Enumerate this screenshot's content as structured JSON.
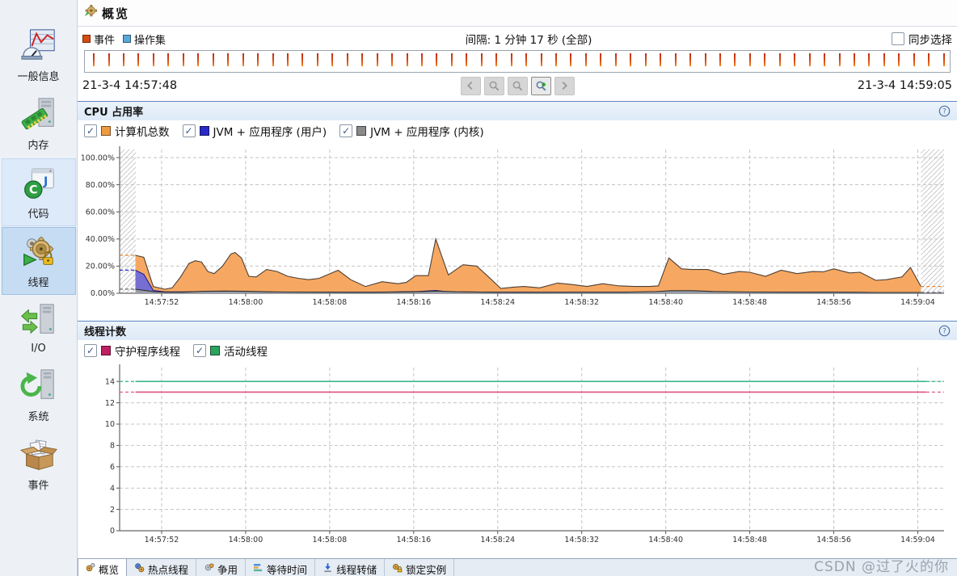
{
  "app": {
    "watermark": "CSDN @过了火的你"
  },
  "header": {
    "title": "概览"
  },
  "sidebar": {
    "items": [
      {
        "id": "general-info",
        "label": "一般信息",
        "state": "normal"
      },
      {
        "id": "memory",
        "label": "内存",
        "state": "normal"
      },
      {
        "id": "code",
        "label": "代码",
        "state": "hover"
      },
      {
        "id": "threads",
        "label": "线程",
        "state": "selected"
      },
      {
        "id": "io",
        "label": "I/O",
        "state": "normal"
      },
      {
        "id": "system",
        "label": "系统",
        "state": "normal"
      },
      {
        "id": "events",
        "label": "事件",
        "state": "normal"
      }
    ]
  },
  "timeline": {
    "legend": [
      {
        "label": "事件",
        "color": "#d94a10"
      },
      {
        "label": "操作集",
        "color": "#58a8d8"
      }
    ],
    "interval_label": "间隔: 1 分钟 17 秒 (全部)",
    "sync_checkbox": {
      "label": "同步选择",
      "checked": false
    },
    "start_time": "21-3-4 14:57:48",
    "end_time": "21-3-4 14:59:05",
    "ticks": {
      "count": 58
    },
    "nav_buttons": [
      {
        "name": "pan-left-button",
        "icon": "arrow-left-icon",
        "enabled": false
      },
      {
        "name": "zoom-out-button",
        "icon": "magnifier-icon",
        "enabled": false
      },
      {
        "name": "zoom-reset-button",
        "icon": "magnifier-icon",
        "enabled": false
      },
      {
        "name": "zoom-in-button",
        "icon": "magnifier-plus-icon",
        "enabled": true
      },
      {
        "name": "pan-right-button",
        "icon": "arrow-right-icon",
        "enabled": false
      }
    ]
  },
  "cpu_panel": {
    "title": "CPU 占用率",
    "legend": [
      {
        "label": "计算机总数",
        "color": "#f09a40",
        "checked": true
      },
      {
        "label": "JVM + 应用程序 (用户)",
        "color": "#2a2ac8",
        "checked": true
      },
      {
        "label": "JVM + 应用程序 (内核)",
        "color": "#8a8a8a",
        "checked": true
      }
    ]
  },
  "thread_panel": {
    "title": "线程计数",
    "legend": [
      {
        "label": "守护程序线程",
        "color": "#c01f63",
        "checked": true
      },
      {
        "label": "活动线程",
        "color": "#2ca25f",
        "checked": true
      }
    ]
  },
  "tabs": [
    {
      "label": "概览",
      "icon": "overview-tab-icon",
      "selected": true
    },
    {
      "label": "热点线程",
      "icon": "hot-threads-tab-icon",
      "selected": false
    },
    {
      "label": "争用",
      "icon": "contention-tab-icon",
      "selected": false
    },
    {
      "label": "等待时间",
      "icon": "wait-times-tab-icon",
      "selected": false
    },
    {
      "label": "线程转储",
      "icon": "thread-dump-tab-icon",
      "selected": false
    },
    {
      "label": "锁定实例",
      "icon": "locked-instances-tab-icon",
      "selected": false
    }
  ],
  "chart_data": [
    {
      "type": "area",
      "title": "CPU 占用率",
      "x_unit": "seconds after 21-3-4 14:57:48",
      "x_range": [
        0,
        78.5
      ],
      "ylim": [
        0,
        106
      ],
      "grid": true,
      "x_ticks": [
        {
          "t": 4,
          "label": "14:57:52"
        },
        {
          "t": 12,
          "label": "14:58:00"
        },
        {
          "t": 20,
          "label": "14:58:08"
        },
        {
          "t": 28,
          "label": "14:58:16"
        },
        {
          "t": 36,
          "label": "14:58:24"
        },
        {
          "t": 44,
          "label": "14:58:32"
        },
        {
          "t": 52,
          "label": "14:58:40"
        },
        {
          "t": 60,
          "label": "14:58:48"
        },
        {
          "t": 68,
          "label": "14:58:56"
        },
        {
          "t": 76,
          "label": "14:59:04"
        }
      ],
      "y_ticks": [
        {
          "v": 0,
          "label": "0.00%"
        },
        {
          "v": 20,
          "label": "20.00%"
        },
        {
          "v": 40,
          "label": "40.00%"
        },
        {
          "v": 60,
          "label": "60.00%"
        },
        {
          "v": 80,
          "label": "80.00%"
        },
        {
          "v": 100,
          "label": "100.00%"
        }
      ],
      "extrapolation": {
        "hatched": true,
        "left_end": 1.5,
        "right_start": 76.3
      },
      "series": [
        {
          "name": "计算机总数",
          "fill": "#f5a35a",
          "stroke": "#4d3f35",
          "dash_color": "#e8882a",
          "points": [
            [
              1.5,
              28
            ],
            [
              2.3,
              26.5
            ],
            [
              3.2,
              5
            ],
            [
              4.3,
              3
            ],
            [
              5,
              4
            ],
            [
              5.8,
              12
            ],
            [
              6.6,
              22
            ],
            [
              7.2,
              24
            ],
            [
              7.8,
              23
            ],
            [
              8.4,
              16
            ],
            [
              9,
              14.5
            ],
            [
              9.8,
              20
            ],
            [
              10.6,
              29
            ],
            [
              11,
              30
            ],
            [
              11.6,
              26
            ],
            [
              12.3,
              12.5
            ],
            [
              13,
              12
            ],
            [
              14,
              17.5
            ],
            [
              15,
              16
            ],
            [
              16,
              12.5
            ],
            [
              17,
              11
            ],
            [
              18,
              10
            ],
            [
              19,
              11
            ],
            [
              20.8,
              17
            ],
            [
              22,
              10
            ],
            [
              23.4,
              5
            ],
            [
              25,
              8.5
            ],
            [
              26.5,
              7
            ],
            [
              27.3,
              8
            ],
            [
              28.2,
              13
            ],
            [
              29.4,
              13
            ],
            [
              30.1,
              40
            ],
            [
              31.3,
              13.5
            ],
            [
              32.7,
              21
            ],
            [
              34,
              20
            ],
            [
              35,
              13
            ],
            [
              36.3,
              3.5
            ],
            [
              37.5,
              4.5
            ],
            [
              38.5,
              5
            ],
            [
              40,
              4
            ],
            [
              41.7,
              7.5
            ],
            [
              43,
              6.5
            ],
            [
              44.5,
              5
            ],
            [
              46,
              7
            ],
            [
              47.5,
              5.5
            ],
            [
              49,
              5
            ],
            [
              50.5,
              5
            ],
            [
              51.3,
              5.5
            ],
            [
              52.3,
              26
            ],
            [
              53.5,
              18
            ],
            [
              54.5,
              17.5
            ],
            [
              56,
              17.5
            ],
            [
              57.5,
              14
            ],
            [
              59,
              16
            ],
            [
              60,
              15.5
            ],
            [
              61.5,
              12.5
            ],
            [
              63,
              17
            ],
            [
              64.5,
              14.5
            ],
            [
              66,
              16
            ],
            [
              67,
              15.8
            ],
            [
              68,
              18
            ],
            [
              69.5,
              15
            ],
            [
              70.5,
              15.5
            ],
            [
              72,
              9.5
            ],
            [
              73,
              10
            ],
            [
              74.5,
              12
            ],
            [
              75.3,
              19
            ],
            [
              76.3,
              5
            ]
          ]
        },
        {
          "name": "JVM + 应用程序 (用户)",
          "fill": "#6f6ad8",
          "stroke": "#1f1f8f",
          "dash_color": "#3333cc",
          "points": [
            [
              1.5,
              17
            ],
            [
              2.3,
              14
            ],
            [
              3.2,
              2
            ],
            [
              4.3,
              1
            ],
            [
              6,
              1
            ],
            [
              8,
              1.2
            ],
            [
              10.6,
              1.5
            ],
            [
              12.3,
              1
            ],
            [
              16,
              0.8
            ],
            [
              20,
              0.8
            ],
            [
              24,
              0.7
            ],
            [
              28.2,
              1.2
            ],
            [
              30.1,
              2
            ],
            [
              31.3,
              1
            ],
            [
              36,
              0.8
            ],
            [
              40,
              0.7
            ],
            [
              44,
              0.7
            ],
            [
              48,
              0.7
            ],
            [
              52.3,
              1.2
            ],
            [
              56,
              0.9
            ],
            [
              60,
              0.8
            ],
            [
              64,
              0.7
            ],
            [
              68,
              0.8
            ],
            [
              72,
              0.6
            ],
            [
              76.3,
              0.6
            ]
          ]
        },
        {
          "name": "JVM + 应用程序 (内核)",
          "fill": "#9aa0a6",
          "stroke": "#2f2f2f",
          "dash_color": "#777777",
          "points": [
            [
              1.5,
              3
            ],
            [
              2.3,
              2.2
            ],
            [
              3.2,
              1.2
            ],
            [
              4.3,
              0.8
            ],
            [
              6,
              0.8
            ],
            [
              8,
              1.4
            ],
            [
              10,
              1.6
            ],
            [
              12,
              1.4
            ],
            [
              14,
              1.1
            ],
            [
              16,
              0.9
            ],
            [
              20,
              0.8
            ],
            [
              24,
              0.7
            ],
            [
              28,
              1
            ],
            [
              30.1,
              1.6
            ],
            [
              32,
              1.1
            ],
            [
              36,
              0.7
            ],
            [
              40,
              0.7
            ],
            [
              44,
              0.8
            ],
            [
              48,
              0.8
            ],
            [
              51,
              1.2
            ],
            [
              52.5,
              1.9
            ],
            [
              54.5,
              1.9
            ],
            [
              56.5,
              1.3
            ],
            [
              60,
              0.9
            ],
            [
              64,
              0.8
            ],
            [
              68,
              0.8
            ],
            [
              72,
              0.6
            ],
            [
              76.3,
              0.6
            ]
          ]
        }
      ]
    },
    {
      "type": "line",
      "title": "线程计数",
      "x_unit": "seconds after 21-3-4 14:57:48",
      "x_range": [
        0,
        78.5
      ],
      "ylim": [
        0,
        15.3
      ],
      "grid": true,
      "x_ticks": [
        {
          "t": 4,
          "label": "14:57:52"
        },
        {
          "t": 12,
          "label": "14:58:00"
        },
        {
          "t": 20,
          "label": "14:58:08"
        },
        {
          "t": 28,
          "label": "14:58:16"
        },
        {
          "t": 36,
          "label": "14:58:24"
        },
        {
          "t": 44,
          "label": "14:58:32"
        },
        {
          "t": 52,
          "label": "14:58:40"
        },
        {
          "t": 60,
          "label": "14:58:48"
        },
        {
          "t": 68,
          "label": "14:58:56"
        },
        {
          "t": 76,
          "label": "14:59:04"
        }
      ],
      "y_ticks": [
        {
          "v": 0,
          "label": "0"
        },
        {
          "v": 2,
          "label": "2"
        },
        {
          "v": 4,
          "label": "4"
        },
        {
          "v": 6,
          "label": "6"
        },
        {
          "v": 8,
          "label": "8"
        },
        {
          "v": 10,
          "label": "10"
        },
        {
          "v": 12,
          "label": "12"
        },
        {
          "v": 14,
          "label": "14"
        }
      ],
      "extrapolation": {
        "hatched": false,
        "left_end": 1.5,
        "right_start": 76.8
      },
      "series": [
        {
          "name": "活动线程",
          "color": "#3cb88e",
          "dash_color": "#3cb88e",
          "points": [
            [
              1.5,
              14
            ],
            [
              76.8,
              14
            ]
          ]
        },
        {
          "name": "守护程序线程",
          "color": "#e05c88",
          "dash_color": "#e05c88",
          "points": [
            [
              1.5,
              13
            ],
            [
              76.8,
              13
            ]
          ]
        }
      ]
    }
  ]
}
